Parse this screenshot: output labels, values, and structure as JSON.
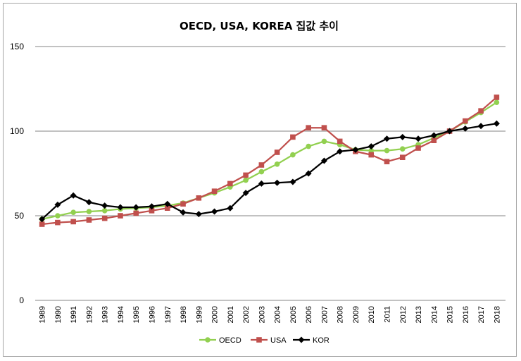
{
  "chart_data": {
    "type": "line",
    "title": "OECD, USA, KOREA 집값 추이",
    "xlabel": "",
    "ylabel": "",
    "ylim": [
      0,
      150
    ],
    "yticks": [
      "0",
      "50",
      "100",
      "150"
    ],
    "grid": true,
    "legend": "bottom",
    "categories": [
      "1989",
      "1990",
      "1991",
      "1992",
      "1993",
      "1994",
      "1995",
      "1996",
      "1997",
      "1998",
      "1999",
      "2000",
      "2001",
      "2002",
      "2003",
      "2004",
      "2005",
      "2006",
      "2007",
      "2008",
      "2009",
      "2010",
      "2011",
      "2012",
      "2013",
      "2014",
      "2015",
      "2016",
      "2017",
      "2018"
    ],
    "series": [
      {
        "name": "OECD",
        "color": "#92d050",
        "marker": "circle",
        "values": [
          48,
          50,
          52,
          52.5,
          53,
          54,
          54.5,
          55,
          56,
          57.5,
          60.5,
          63.5,
          67,
          71,
          76,
          80.5,
          86,
          91,
          94,
          92,
          89,
          88.5,
          88.5,
          89.5,
          92,
          96,
          100,
          105.5,
          111,
          117
        ]
      },
      {
        "name": "USA",
        "color": "#c0504d",
        "marker": "square",
        "values": [
          45,
          46,
          46.5,
          47.5,
          48.5,
          50,
          51.5,
          53,
          54.5,
          57,
          60.5,
          64.5,
          69,
          74,
          80,
          87.5,
          96.5,
          102,
          102,
          94,
          88,
          86,
          82,
          84.5,
          90,
          94.5,
          100,
          106,
          112,
          120
        ]
      },
      {
        "name": "KOR",
        "color": "#000000",
        "marker": "diamond",
        "values": [
          48,
          56.5,
          62,
          58,
          56,
          55,
          55,
          55.5,
          57,
          52,
          51,
          52.5,
          54.5,
          63.5,
          69,
          69.5,
          70,
          75,
          82.5,
          88,
          89,
          91,
          95.5,
          96.5,
          95.5,
          97.5,
          100,
          101.5,
          103,
          104.5
        ]
      }
    ]
  }
}
